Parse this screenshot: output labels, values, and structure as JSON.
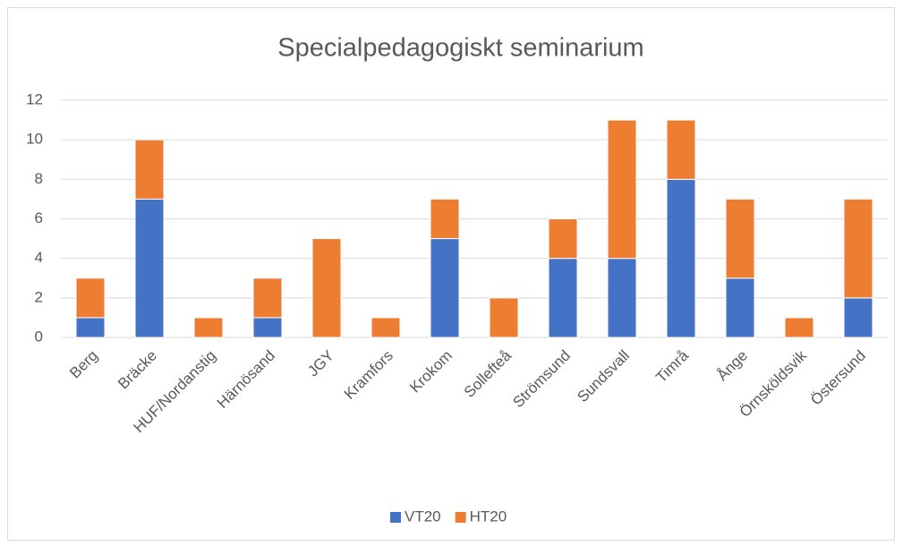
{
  "chart_data": {
    "type": "stacked_bar",
    "title": "Specialpedagogiskt seminarium",
    "categories": [
      "Berg",
      "Bräcke",
      "HUF/Nordanstig",
      "Härnösand",
      "JGY",
      "Kramfors",
      "Krokom",
      "Sollefteå",
      "Strömsund",
      "Sundsvall",
      "Timrå",
      "Ånge",
      "Örnsköldsvik",
      "Östersund"
    ],
    "series": [
      {
        "name": "VT20",
        "color": "#4472c4",
        "values": [
          1,
          7,
          0,
          1,
          0,
          0,
          5,
          0,
          4,
          4,
          8,
          3,
          0,
          2
        ]
      },
      {
        "name": "HT20",
        "color": "#ed7d31",
        "values": [
          2,
          3,
          1,
          2,
          5,
          1,
          2,
          2,
          2,
          7,
          3,
          4,
          1,
          5
        ]
      }
    ],
    "ylim": [
      0,
      12
    ],
    "yticks": [
      0,
      2,
      4,
      6,
      8,
      10,
      12
    ],
    "grid": true,
    "legend": "bottom"
  }
}
